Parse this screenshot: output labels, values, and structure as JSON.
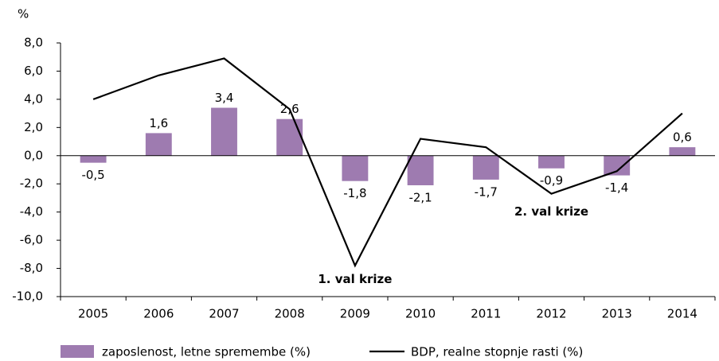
{
  "chart_data": {
    "type": "bar",
    "y_unit": "%",
    "categories": [
      "2005",
      "2006",
      "2007",
      "2008",
      "2009",
      "2010",
      "2011",
      "2012",
      "2013",
      "2014"
    ],
    "series": [
      {
        "name": "zaposlenost, letne spremembe (%)",
        "type": "bar",
        "color": "#9e7bb0",
        "values": [
          -0.5,
          1.6,
          3.4,
          2.6,
          -1.8,
          -2.1,
          -1.7,
          -0.9,
          -1.4,
          0.6
        ],
        "value_labels": [
          "-0,5",
          "1,6",
          "3,4",
          "2,6",
          "-1,8",
          "-2,1",
          "-1,7",
          "-0,9",
          "-1,4",
          "0,6"
        ]
      },
      {
        "name": "BDP, realne stopnje rasti (%)",
        "type": "line",
        "color": "#000000",
        "values": [
          4.0,
          5.7,
          6.9,
          3.3,
          -7.8,
          1.2,
          0.6,
          -2.7,
          -1.1,
          3.0
        ]
      }
    ],
    "annotations": [
      {
        "text": "1. val krize",
        "category": 4,
        "y": -8.8
      },
      {
        "text": "2. val krize",
        "category": 7,
        "y": -4.0
      }
    ],
    "ylim": [
      -10,
      8
    ],
    "yticks": [
      {
        "value": -10,
        "label": "-10,0"
      },
      {
        "value": -8,
        "label": "-8,0"
      },
      {
        "value": -6,
        "label": "-6,0"
      },
      {
        "value": -4,
        "label": "-4,0"
      },
      {
        "value": -2,
        "label": "-2,0"
      },
      {
        "value": 0,
        "label": "0,0"
      },
      {
        "value": 2,
        "label": "2,0"
      },
      {
        "value": 4,
        "label": "4,0"
      },
      {
        "value": 6,
        "label": "6,0"
      },
      {
        "value": 8,
        "label": "8,0"
      }
    ]
  }
}
